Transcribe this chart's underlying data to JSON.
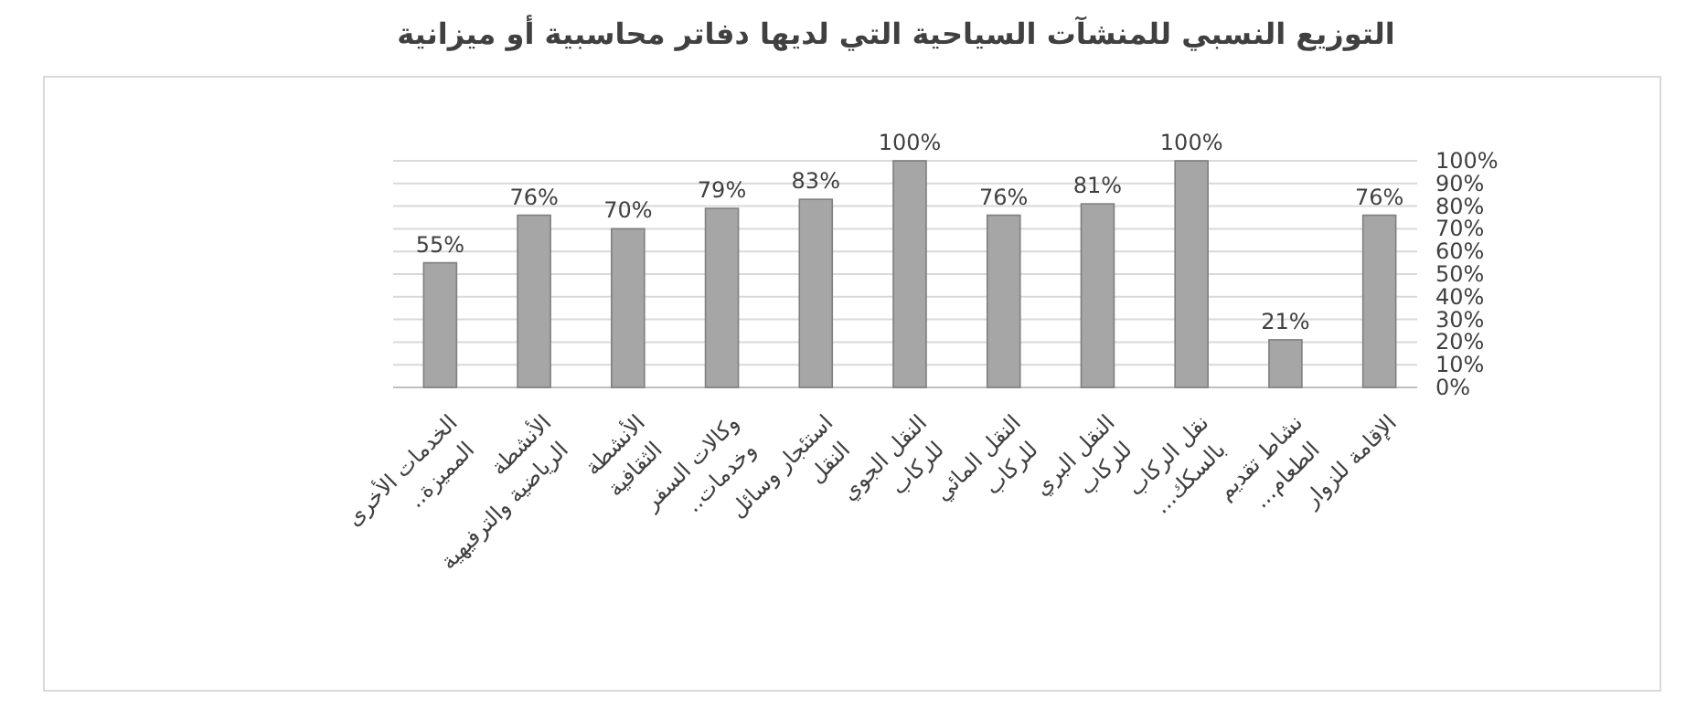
{
  "chart_data": {
    "type": "bar",
    "title": "التوزيع النسبي للمنشآت السياحية التي لديها دفاتر محاسبية أو ميزانية",
    "categories": [
      "الخدمات الأخرى المميزة..",
      "الأنشطة الرياضية والترفيهية",
      "الأنشطة الثقافية",
      "وكالات السفر وخدمات..",
      "استئجار وسائل النقل",
      "النقل الجوي للركاب",
      "النقل المائي للركاب",
      "النقل البري للركاب",
      "نقل الركاب بالسكك...",
      "نشاط تقديم الطعام...",
      "الإقامة للزوار"
    ],
    "values": [
      55,
      76,
      70,
      79,
      83,
      100,
      76,
      81,
      100,
      21,
      76
    ],
    "value_labels": [
      "55%",
      "76%",
      "70%",
      "79%",
      "83%",
      "100%",
      "76%",
      "81%",
      "100%",
      "21%",
      "76%"
    ],
    "color": "#a6a6a6",
    "ylim": [
      0,
      100
    ],
    "yticks": [
      {
        "value": 0,
        "label": "0%"
      },
      {
        "value": 10,
        "label": "10%"
      },
      {
        "value": 20,
        "label": "20%"
      },
      {
        "value": 30,
        "label": "30%"
      },
      {
        "value": 40,
        "label": "40%"
      },
      {
        "value": 50,
        "label": "50%"
      },
      {
        "value": 60,
        "label": "60%"
      },
      {
        "value": 70,
        "label": "70%"
      },
      {
        "value": 80,
        "label": "80%"
      },
      {
        "value": 90,
        "label": "90%"
      },
      {
        "value": 100,
        "label": "100%"
      }
    ],
    "grid": "y"
  }
}
